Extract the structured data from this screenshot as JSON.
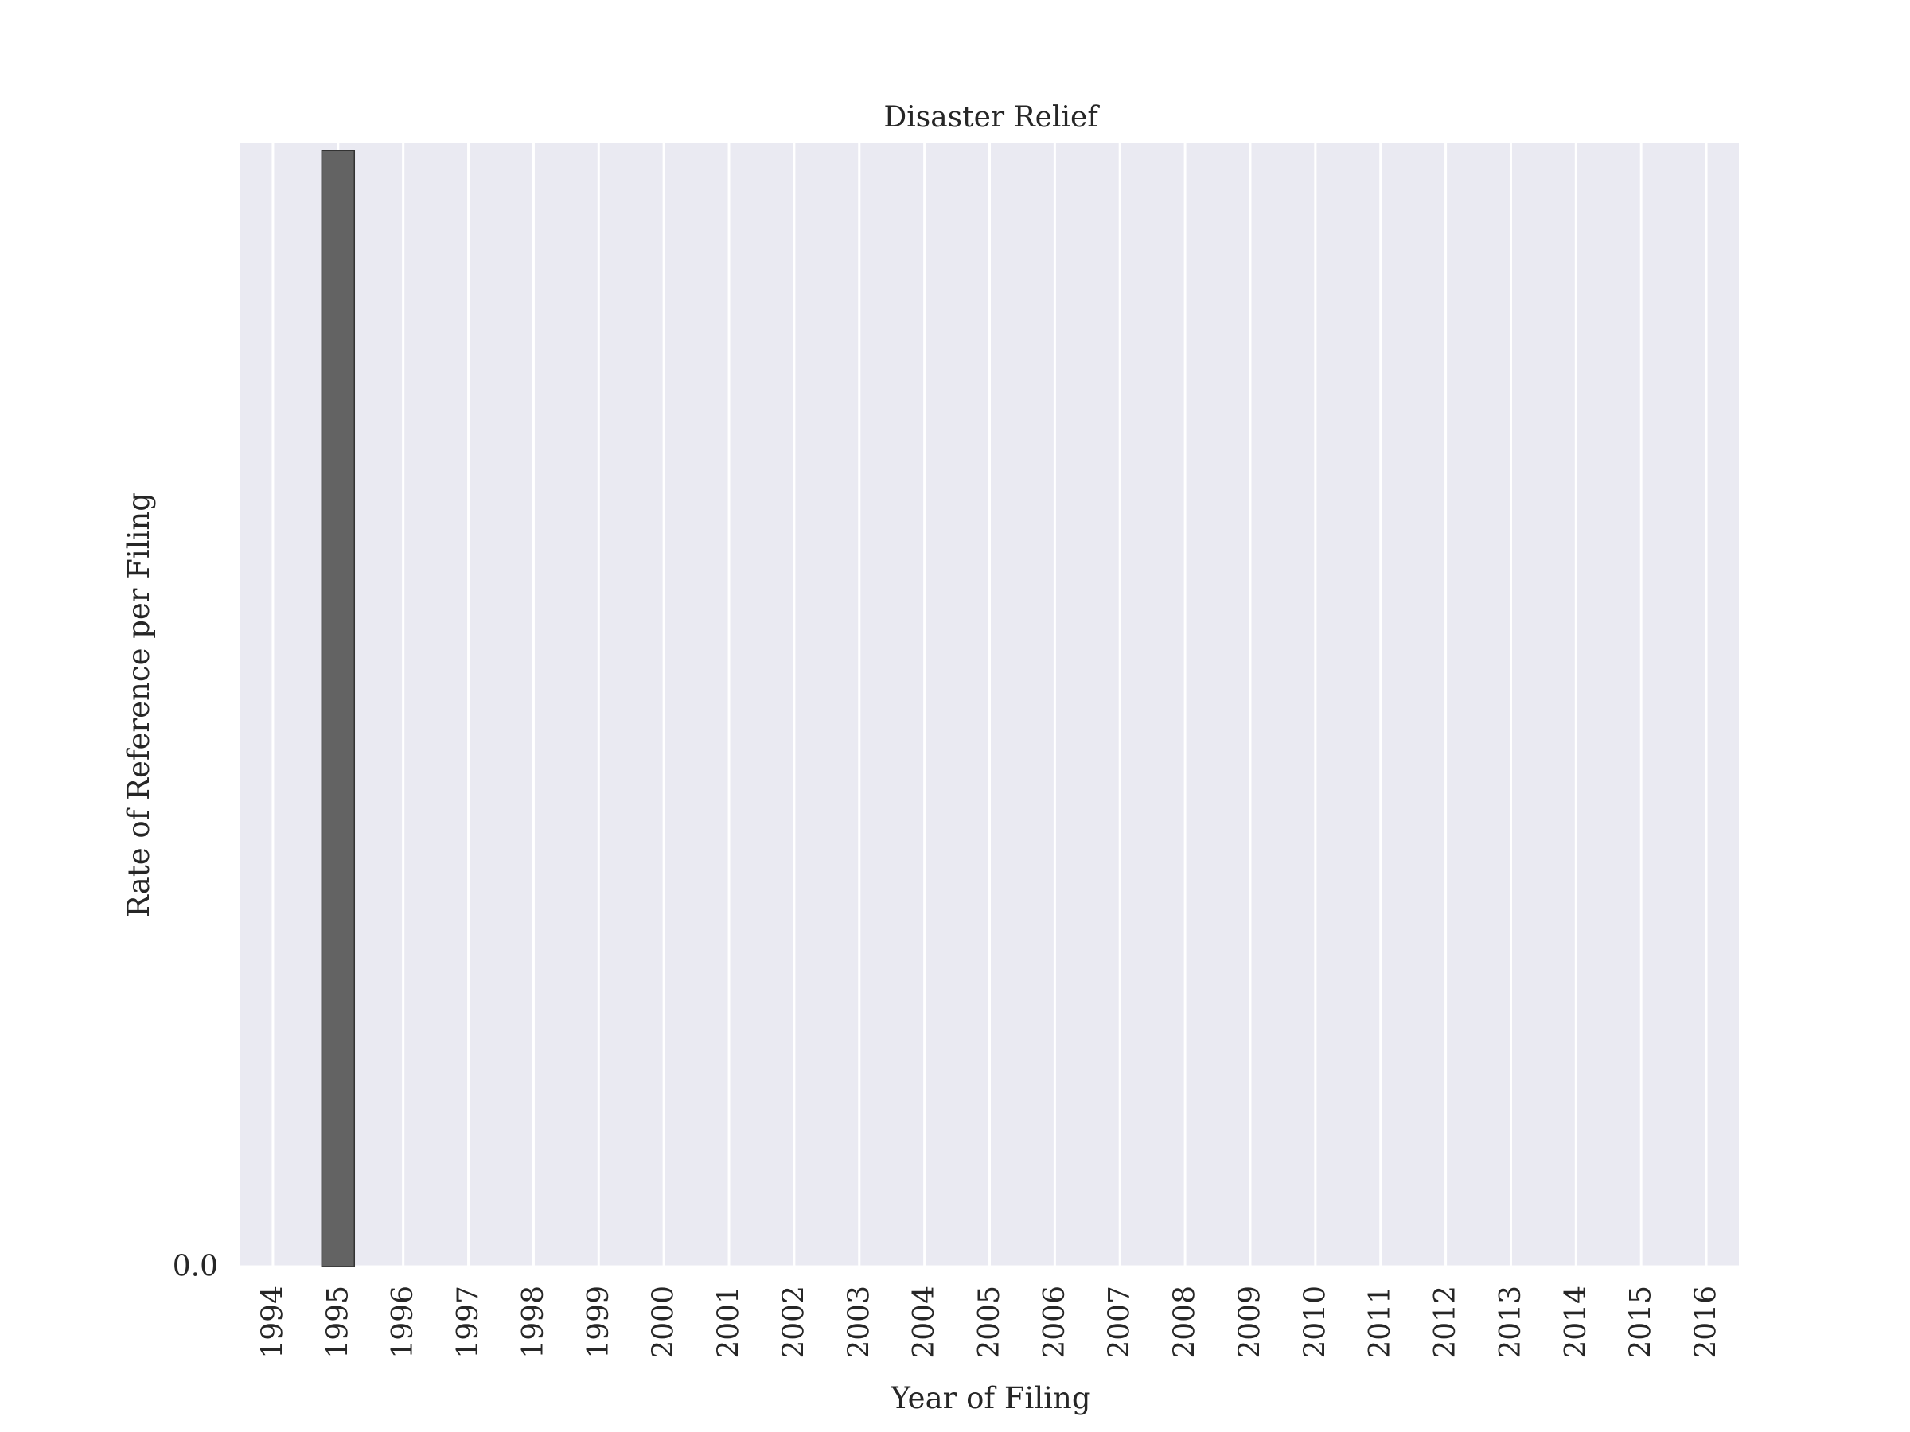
{
  "chart_data": {
    "type": "bar",
    "title": "Disaster Relief",
    "xlabel": "Year of Filing",
    "ylabel": "Rate of Reference per Filing",
    "categories": [
      "1994",
      "1995",
      "1996",
      "1997",
      "1998",
      "1999",
      "2000",
      "2001",
      "2002",
      "2003",
      "2004",
      "2005",
      "2006",
      "2007",
      "2008",
      "2009",
      "2010",
      "2011",
      "2012",
      "2013",
      "2014",
      "2015",
      "2016"
    ],
    "values": [
      0,
      1,
      0,
      0,
      0,
      0,
      0,
      0,
      0,
      0,
      0,
      0,
      0,
      0,
      0,
      0,
      0,
      0,
      0,
      0,
      0,
      0,
      0
    ],
    "yticks": [
      "0.0"
    ],
    "ylim": [
      0,
      1.0066
    ],
    "grid": true,
    "background_color": "#eaeaf2",
    "grid_color": "#ffffff",
    "bar_color": "#636363",
    "bar_edge_color": "#333333"
  }
}
